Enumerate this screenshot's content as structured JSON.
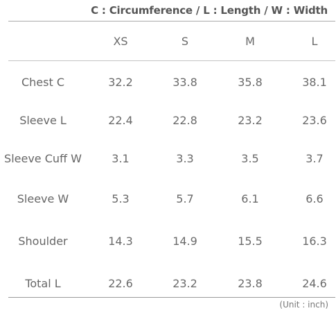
{
  "legend": "C : Circumference / L : Length / W : Width",
  "size_chart": {
    "sizes": [
      "XS",
      "S",
      "M",
      "L"
    ],
    "rows": [
      {
        "label": "Chest C",
        "values": [
          "32.2",
          "33.8",
          "35.8",
          "38.1"
        ]
      },
      {
        "label": "Sleeve L",
        "values": [
          "22.4",
          "22.8",
          "23.2",
          "23.6"
        ]
      },
      {
        "label": "Sleeve Cuff W",
        "values": [
          "3.1",
          "3.3",
          "3.5",
          "3.7"
        ]
      },
      {
        "label": "Sleeve W",
        "values": [
          "5.3",
          "5.7",
          "6.1",
          "6.6"
        ]
      },
      {
        "label": "Shoulder",
        "values": [
          "14.3",
          "14.9",
          "15.5",
          "16.3"
        ]
      },
      {
        "label": "Total L",
        "values": [
          "22.6",
          "23.2",
          "23.8",
          "24.6"
        ]
      }
    ]
  },
  "unit_note": "(Unit : inch)"
}
